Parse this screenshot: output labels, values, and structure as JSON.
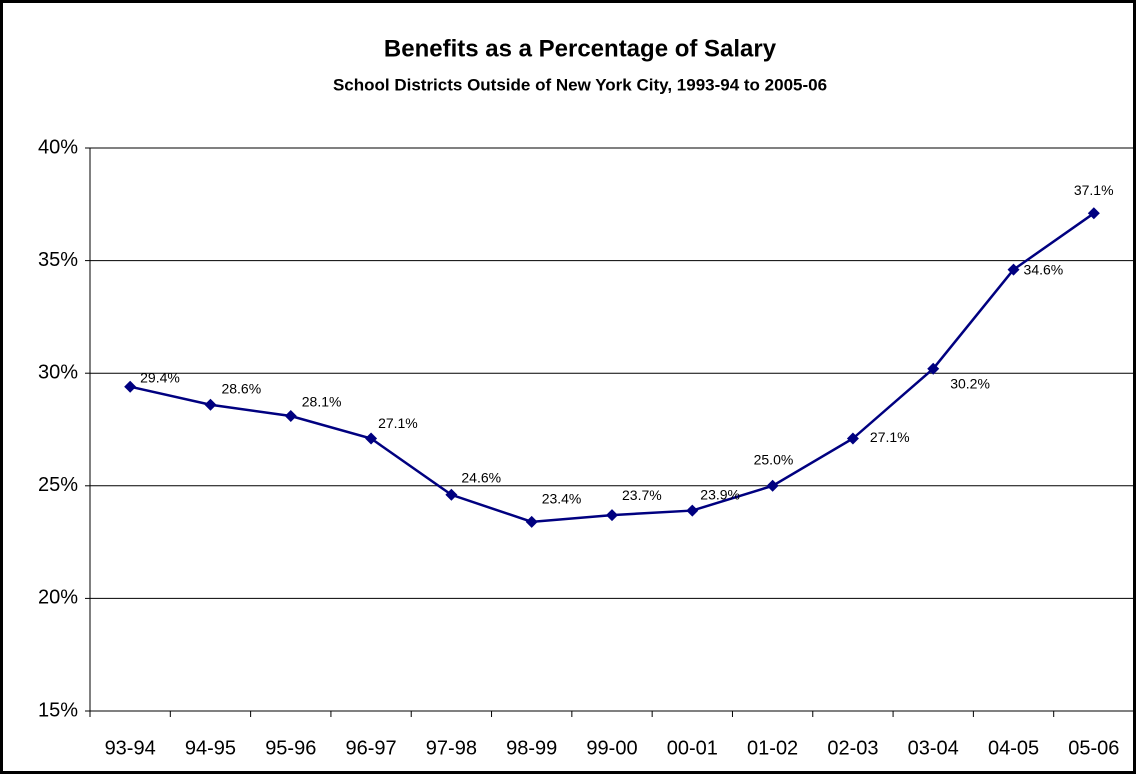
{
  "chart_data": {
    "type": "line",
    "title": "Benefits as a Percentage of Salary",
    "subtitle": "School Districts Outside of New York City, 1993-94 to 2005-06",
    "categories": [
      "93-94",
      "94-95",
      "95-96",
      "96-97",
      "97-98",
      "98-99",
      "99-00",
      "00-01",
      "01-02",
      "02-03",
      "03-04",
      "04-05",
      "05-06"
    ],
    "series": [
      {
        "name": "Benefits as a Percentage of Salary",
        "color": "#000080",
        "values": [
          29.4,
          28.6,
          28.1,
          27.1,
          24.6,
          23.4,
          23.7,
          23.9,
          25.0,
          27.1,
          30.2,
          34.6,
          37.1
        ],
        "value_labels": [
          "29.4%",
          "28.6%",
          "28.1%",
          "27.1%",
          "24.6%",
          "23.4%",
          "23.7%",
          "23.9%",
          "25.0%",
          "27.1%",
          "30.2%",
          "34.6%",
          "37.1%"
        ]
      }
    ],
    "ylim": [
      15,
      40
    ],
    "yticks": [
      {
        "value": 15,
        "label": "15%"
      },
      {
        "value": 20,
        "label": "20%"
      },
      {
        "value": 25,
        "label": "25%"
      },
      {
        "value": 30,
        "label": "30%"
      },
      {
        "value": 35,
        "label": "35%"
      },
      {
        "value": 40,
        "label": "40%"
      }
    ],
    "grid": true
  }
}
